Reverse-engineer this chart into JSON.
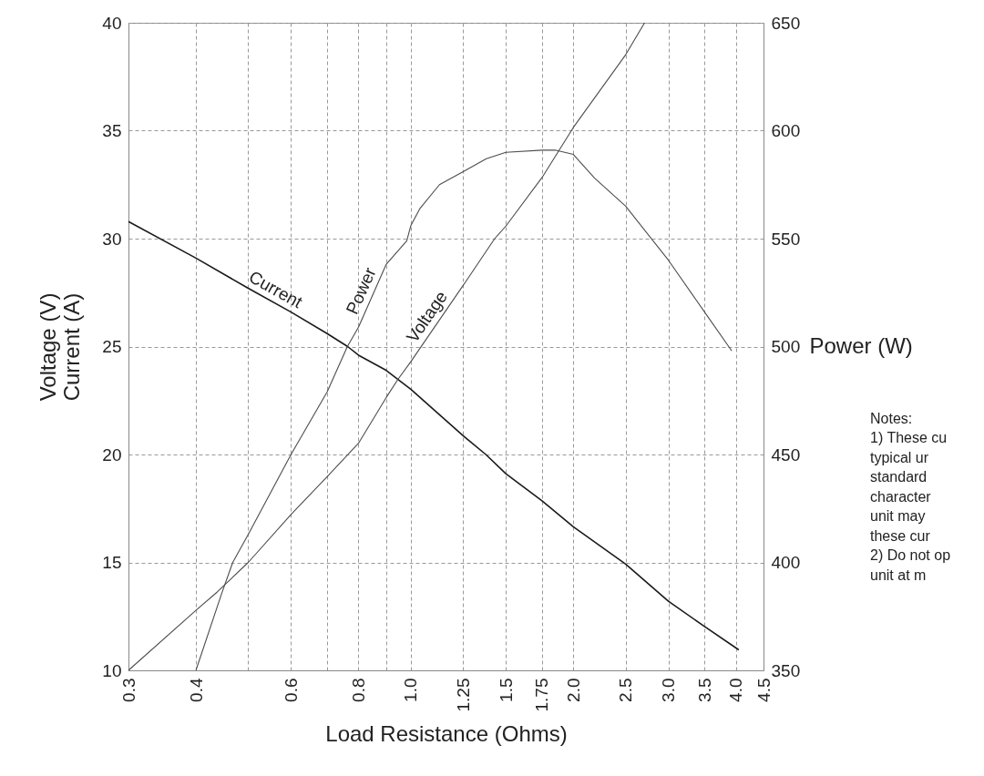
{
  "chart_data": {
    "type": "line",
    "xlabel": "Load Resistance (Ohms)",
    "ylabel": "Voltage (V)\nCurrent (A)",
    "y2label": "Power (W)",
    "log": "x",
    "grid": true,
    "marker": "none",
    "line_style": "solid",
    "xlim": [
      0.3,
      4.5
    ],
    "ylim": [
      10,
      40
    ],
    "y2lim": [
      350,
      650
    ],
    "xticks": [
      0.3,
      0.4,
      {
        "value": 0.5,
        "label": null
      },
      0.6,
      {
        "value": 0.7,
        "label": null
      },
      0.8,
      {
        "value": 0.9,
        "label": null
      },
      {
        "value": 1.0,
        "label": "1.0"
      },
      1.25,
      1.5,
      1.75,
      {
        "value": 2.0,
        "label": "2.0"
      },
      2.5,
      {
        "value": 3.0,
        "label": "3.0"
      },
      3.5,
      {
        "value": 4.0,
        "label": "4.0"
      },
      4.5
    ],
    "yticks": [
      10,
      15,
      20,
      25,
      30,
      35,
      40
    ],
    "y2ticks": [
      350,
      400,
      450,
      500,
      550,
      600,
      650
    ],
    "series": [
      {
        "name": "Current",
        "color": "#1a1a1a",
        "x": [
          0.3,
          0.4,
          0.5,
          0.6,
          0.7,
          0.764,
          0.8,
          0.9,
          1.0,
          1.25,
          1.377,
          1.5,
          1.75,
          2.0,
          2.5,
          3.0,
          3.5,
          4.05
        ],
        "values": [
          30.79,
          29.1,
          27.7,
          26.6,
          25.6,
          25.0,
          24.6,
          23.9,
          23.02,
          20.87,
          20.0,
          19.11,
          17.85,
          16.65,
          14.92,
          13.2,
          12.03,
          10.95
        ]
      },
      {
        "name": "Power",
        "color": "#4d4d4d",
        "axis": "y2",
        "x": [
          0.4,
          0.447,
          0.468,
          0.5,
          0.6,
          0.7,
          0.763,
          0.8,
          0.9,
          0.983,
          1.0,
          1.04,
          1.13,
          1.25,
          1.38,
          1.5,
          1.75,
          1.85,
          2.0,
          2.19,
          2.5,
          3.0,
          3.5,
          3.93
        ],
        "values": [
          350,
          386,
          400,
          413,
          450,
          479,
          500,
          509,
          538,
          549,
          556,
          564,
          575,
          581,
          587,
          590,
          591,
          591,
          589,
          578,
          565,
          540,
          516,
          498
        ]
      },
      {
        "name": "Voltage",
        "color": "#4d4d4d",
        "x": [
          0.3,
          0.4,
          0.438,
          0.5,
          0.6,
          0.7,
          0.8,
          0.9,
          0.946,
          1.0,
          1.25,
          1.43,
          1.5,
          1.75,
          2.0,
          2.5,
          2.71
        ],
        "values": [
          10,
          12.78,
          13.63,
          15.0,
          17.22,
          18.97,
          20.52,
          22.63,
          23.47,
          24.3,
          27.83,
          30.0,
          30.58,
          32.83,
          35.15,
          38.52,
          40
        ]
      }
    ],
    "annotations": [
      "Notes:",
      "1) These cu",
      "typical ur",
      "standard",
      "character",
      "unit may",
      "these cur",
      "2) Do not op",
      "unit at m"
    ]
  }
}
